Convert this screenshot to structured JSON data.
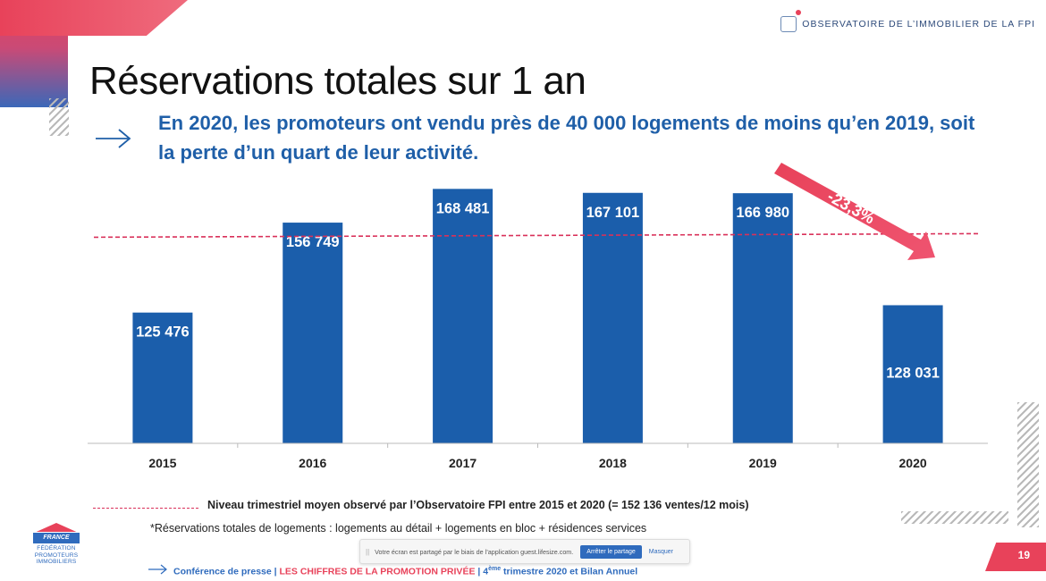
{
  "slide": {
    "title": "Réservations totales sur 1 an",
    "subtitle": "En 2020, les promoteurs ont vendu près de 40 000 logements de moins qu’en 2019, soit la perte d’un quart de leur activité.",
    "logo_text": "OBSERVATOIRE DE L’IMMOBILIER DE LA FPI",
    "legend": "Niveau trimestriel moyen observé par l’Observatoire FPI entre 2015 et 2020 (= 152 136 ventes/12 mois)",
    "footnote": "*Réservations totales de logements : logements au détail + logements en bloc + résidences services",
    "page_number": "19",
    "org_logo": {
      "flag": "FRANCE",
      "lines": [
        "FÉDÉRATION",
        "PROMOTEURS",
        "IMMOBILIERS"
      ]
    },
    "footer": {
      "part1": "Conférence de presse | ",
      "part2": "LES CHIFFRES DE LA PROMOTION PRIVÉE",
      "part3": " | 4",
      "sup": "ème",
      "part4": " trimestre 2020 et Bilan Annuel"
    },
    "share_bar": {
      "grip": "||",
      "message": "Votre écran est partagé par le biais de l’application guest.lifesize.com.",
      "stop_label": "Arrêter le partage",
      "hide_label": "Masquer"
    },
    "icons": [
      "arrow-right-icon",
      "observatoire-logo-icon"
    ]
  },
  "chart_data": {
    "type": "bar",
    "categories": [
      "2015",
      "2016",
      "2017",
      "2018",
      "2019",
      "2020"
    ],
    "values": [
      125476,
      156749,
      168481,
      167101,
      166980,
      128031
    ],
    "value_labels": [
      "125 476",
      "156 749",
      "168 481",
      "167 101",
      "166 980",
      "128 031"
    ],
    "ylim": [
      80000,
      172000
    ],
    "reference_line": {
      "value": 152136,
      "style": "dashed"
    },
    "annotation": {
      "text": "-23,3%",
      "from": "2019",
      "to": "2020"
    },
    "grid": false,
    "colors": {
      "bar": "#1b5eab",
      "reference": "#d9315a",
      "annotation": "#e8425a"
    }
  }
}
